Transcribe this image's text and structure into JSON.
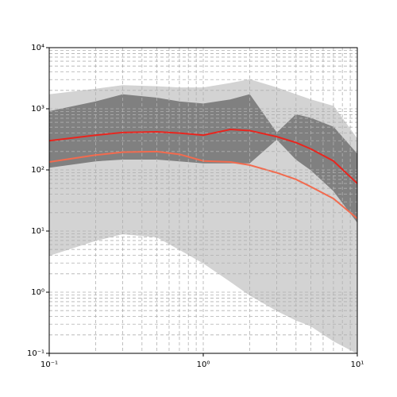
{
  "chart_data": {
    "type": "line",
    "log_x": true,
    "log_y": true,
    "grid": true,
    "minor_grid": true,
    "x": [
      0.1,
      0.2,
      0.3,
      0.5,
      0.7,
      1,
      1.5,
      2,
      3,
      4,
      5,
      7,
      10
    ],
    "bands": [
      {
        "color": "#d3d3d3",
        "upper": [
          1700,
          2100,
          2400,
          2300,
          2200,
          2200,
          2600,
          3000,
          2200,
          1700,
          1400,
          1100,
          320
        ],
        "lower": [
          4,
          7,
          9,
          8,
          5,
          3,
          1.5,
          0.9,
          0.5,
          0.35,
          0.28,
          0.16,
          0.1
        ]
      },
      {
        "color": "#808080",
        "upper": [
          900,
          1300,
          1700,
          1500,
          1300,
          1200,
          1400,
          1700,
          400,
          800,
          700,
          500,
          180
        ],
        "lower": [
          110,
          140,
          150,
          150,
          140,
          130,
          130,
          130,
          320,
          150,
          100,
          46,
          14
        ]
      }
    ],
    "series": [
      {
        "color": "#e8251e",
        "values": [
          300,
          370,
          410,
          420,
          400,
          370,
          460,
          440,
          350,
          280,
          220,
          140,
          60
        ]
      },
      {
        "color": "#f26b4f",
        "values": [
          135,
          175,
          195,
          200,
          180,
          140,
          135,
          120,
          90,
          70,
          53,
          34,
          16
        ]
      }
    ],
    "xlim": [
      0.1,
      10
    ],
    "ylim": [
      0.1,
      10000
    ],
    "xticks": [
      {
        "value": 0.1,
        "label": "10⁻¹"
      },
      {
        "value": 1,
        "label": "10⁰"
      },
      {
        "value": 10,
        "label": "10¹"
      }
    ],
    "yticks": [
      {
        "value": 0.1,
        "label": "10⁻¹"
      },
      {
        "value": 1,
        "label": "10⁰"
      },
      {
        "value": 10,
        "label": "10¹"
      },
      {
        "value": 100,
        "label": "10²"
      },
      {
        "value": 1000,
        "label": "10³"
      },
      {
        "value": 10000,
        "label": "10⁴"
      }
    ]
  }
}
